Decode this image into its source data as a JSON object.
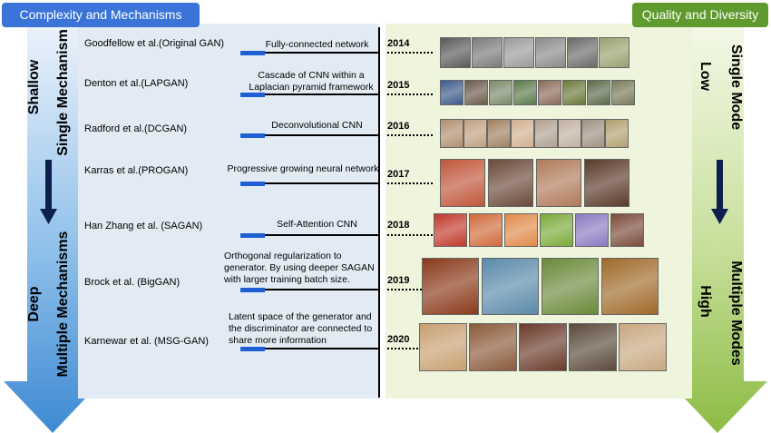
{
  "header": {
    "left_title": "Complexity and Mechanisms",
    "right_title": "Quality and Diversity"
  },
  "left_axis": {
    "top_depth": "Shallow",
    "top_mechanism": "Single Mechanism",
    "bottom_depth": "Deep",
    "bottom_mechanism": "Multiple Mechanisms"
  },
  "right_axis": {
    "top_mode": "Single Mode",
    "top_level": "Low",
    "bottom_mode": "Multiple Modes",
    "bottom_level": "High"
  },
  "entries": [
    {
      "author": "Goodfellow et al.(Original GAN)",
      "method": "Fully-connected network",
      "year": "2014",
      "colors": [
        "#5a5a5a",
        "#7a7a7a",
        "#9a9a9a",
        "#8a8a8a",
        "#6a6a6a",
        "#9aa070"
      ]
    },
    {
      "author": "Denton et al.(LAPGAN)",
      "method": "Cascade of CNN within a Laplacian pyramid framework",
      "year": "2015",
      "colors": [
        "#3b5a8a",
        "#6a5a4a",
        "#7a8a6a",
        "#5a7a4a",
        "#8a6a5a",
        "#6a7a3a",
        "#5a6a4a",
        "#7a7a5a"
      ]
    },
    {
      "author": "Radford et al.(DCGAN)",
      "method": "Deconvolutional CNN",
      "year": "2016",
      "colors": [
        "#b09070",
        "#c0a080",
        "#a08060",
        "#d0b090",
        "#b0a090",
        "#c0b0a0",
        "#a09080",
        "#b0a070"
      ]
    },
    {
      "author": "Karras et al.(PROGAN)",
      "method": "Progressive growing neural network",
      "year": "2017",
      "colors": [
        "#c0563a",
        "#6a4a3a",
        "#b07a5a",
        "#5a3a2a"
      ]
    },
    {
      "author": "Han Zhang et al. (SAGAN)",
      "method": "Self-Attention CNN",
      "year": "2018",
      "colors": [
        "#c03a2a",
        "#d06a3a",
        "#e08a4a",
        "#7aaa3a",
        "#8a7ac0",
        "#7a4a3a"
      ]
    },
    {
      "author": "Brock et al. (BigGAN)",
      "method": "Orthogonal regularization to generator. By using deeper SAGAN with larger training batch size.",
      "year": "2019",
      "colors": [
        "#8a3a1a",
        "#5a8aaa",
        "#6a8a3a",
        "#a06a2a"
      ]
    },
    {
      "author": "Karnewar et al. (MSG-GAN)",
      "method": "Latent space of the generator and the discriminator are connected to share more information",
      "year": "2020",
      "colors": [
        "#c8a070",
        "#8a5a3a",
        "#6a3a2a",
        "#5a4a3a",
        "#c8a880"
      ]
    }
  ]
}
